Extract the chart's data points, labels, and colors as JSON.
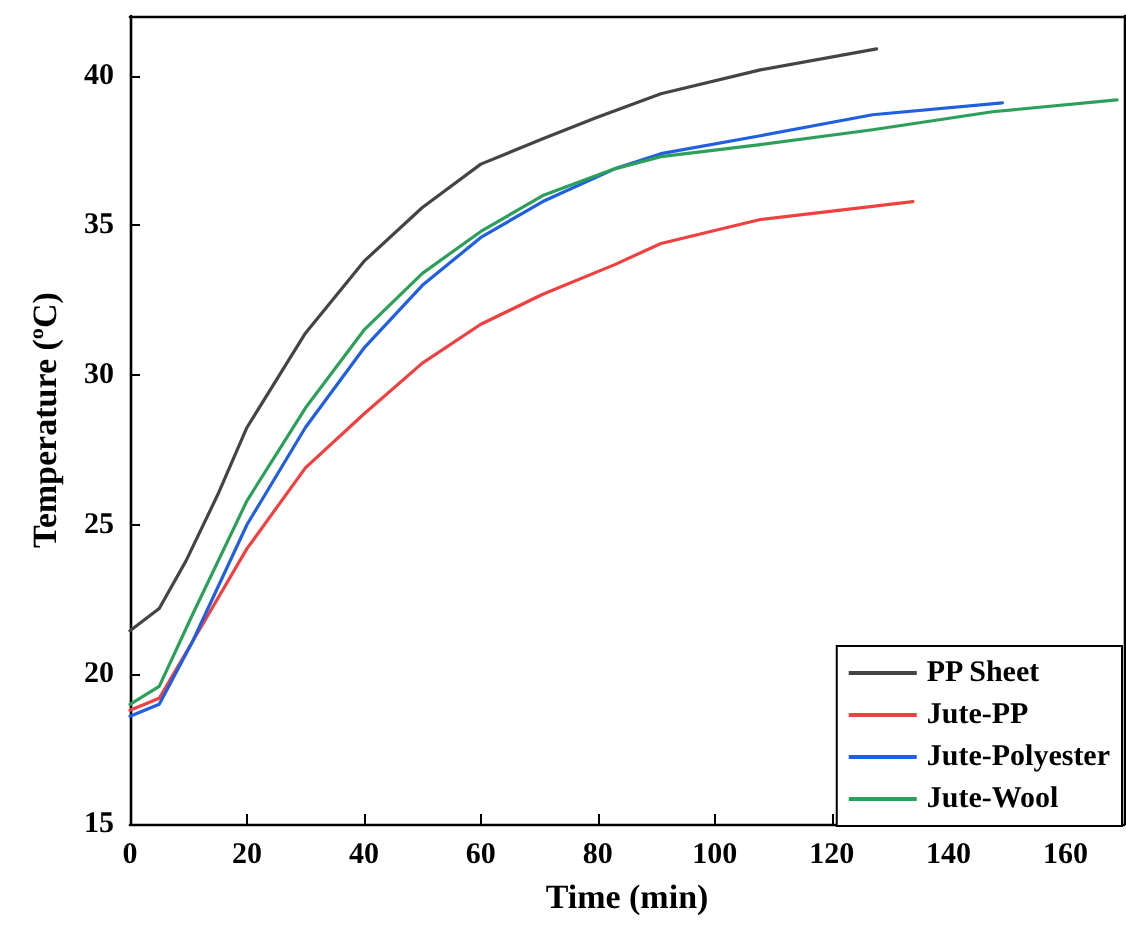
{
  "chart_data": {
    "type": "line",
    "xlabel": "Time (min)",
    "ylabel": "Temperature (ºC)",
    "xlim": [
      0,
      170
    ],
    "xticks": [
      0,
      20,
      40,
      60,
      80,
      100,
      120,
      140,
      160
    ],
    "ylim": [
      15,
      42
    ],
    "yticks": [
      15,
      20,
      25,
      30,
      35,
      40
    ],
    "grid": false,
    "legend": "bottom right",
    "marker": "none",
    "line_style": "solid",
    "series": [
      {
        "name": "PP Sheet",
        "color": "#444444",
        "x": [
          0,
          5,
          9.6,
          15,
          20,
          30,
          40,
          50,
          60,
          70.6,
          79.7,
          90.8,
          107.8,
          127.7
        ],
        "values": [
          21.46,
          22.2,
          23.8,
          26,
          28.25,
          31.4,
          33.8,
          35.6,
          37.05,
          37.9,
          38.6,
          39.4,
          40.2,
          40.9
        ]
      },
      {
        "name": "Jute-PP",
        "color": "#f04040",
        "x": [
          0,
          5,
          10.7,
          20,
          30,
          40,
          50,
          60,
          70.6,
          83,
          90.8,
          107.8,
          133.9
        ],
        "values": [
          18.8,
          19.2,
          21.1,
          24.2,
          26.9,
          28.7,
          30.4,
          31.7,
          32.7,
          33.7,
          34.4,
          35.2,
          35.8
        ]
      },
      {
        "name": "Jute-Polyester",
        "color": "#1f5fe0",
        "x": [
          0,
          5,
          10.7,
          20,
          30,
          40,
          50,
          60,
          70.6,
          83,
          90.8,
          107.8,
          127,
          149.2
        ],
        "values": [
          18.6,
          19,
          21.1,
          25,
          28.25,
          30.9,
          33,
          34.6,
          35.8,
          36.9,
          37.4,
          38,
          38.7,
          39.1
        ]
      },
      {
        "name": "Jute-Wool",
        "color": "#2ca05a",
        "x": [
          0,
          5,
          10.7,
          20,
          30,
          40,
          50,
          60,
          70.6,
          83,
          90.8,
          107.8,
          127,
          147.5,
          168.8
        ],
        "values": [
          19,
          19.6,
          22,
          25.8,
          28.9,
          31.5,
          33.4,
          34.8,
          36,
          36.9,
          37.3,
          37.7,
          38.2,
          38.8,
          39.2
        ]
      }
    ]
  }
}
